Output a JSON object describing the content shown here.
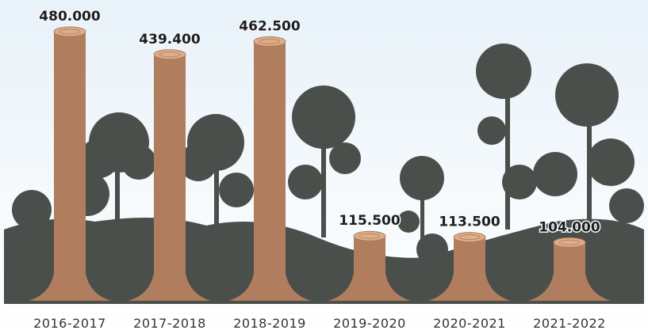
{
  "chart_data": {
    "type": "trunk",
    "categories": [
      "2016-2017",
      "2017-2018",
      "2018-2019",
      "2019-2020",
      "2020-2021",
      "2021-2022"
    ],
    "values": [
      480000,
      439400,
      462500,
      115500,
      113500,
      104000
    ],
    "value_labels": [
      "480.000",
      "439.400",
      "462.500",
      "115.500",
      "113.500",
      "104.000"
    ],
    "color": "#b07d5e"
  }
}
